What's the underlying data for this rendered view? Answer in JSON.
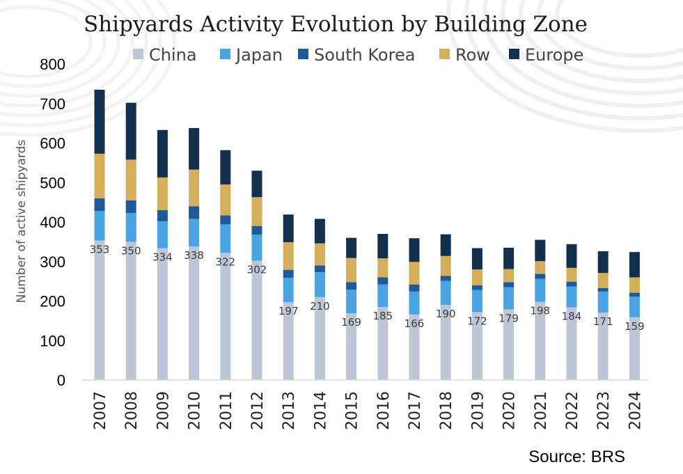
{
  "chart_data": {
    "type": "bar",
    "stacked": true,
    "title": "Shipyards Activity Evolution by Building Zone",
    "ylabel": "Number of active shipyards",
    "xlabel": "",
    "ylim": [
      0,
      800
    ],
    "yticks": [
      0,
      100,
      200,
      300,
      400,
      500,
      600,
      700,
      800
    ],
    "grid": false,
    "legend_position": "top",
    "categories": [
      "2007",
      "2008",
      "2009",
      "2010",
      "2011",
      "2012",
      "2013",
      "2014",
      "2015",
      "2016",
      "2017",
      "2018",
      "2019",
      "2020",
      "2021",
      "2022",
      "2023",
      "2024"
    ],
    "series": [
      {
        "name": "China",
        "color": "#bcc6d4",
        "show_labels": true,
        "values": [
          353,
          350,
          334,
          338,
          322,
          302,
          197,
          210,
          169,
          185,
          166,
          190,
          172,
          179,
          198,
          184,
          171,
          159
        ]
      },
      {
        "name": "Japan",
        "color": "#4aa3e2",
        "values": [
          75,
          73,
          68,
          70,
          72,
          66,
          62,
          63,
          60,
          57,
          58,
          61,
          56,
          56,
          58,
          53,
          53,
          52
        ]
      },
      {
        "name": "South Korea",
        "color": "#1f5a96",
        "values": [
          32,
          32,
          28,
          32,
          23,
          22,
          20,
          17,
          19,
          18,
          18,
          13,
          12,
          13,
          13,
          12,
          9,
          10
        ]
      },
      {
        "name": "Row",
        "color": "#d4ae5a",
        "values": [
          113,
          103,
          83,
          93,
          78,
          73,
          70,
          56,
          61,
          48,
          57,
          50,
          40,
          33,
          32,
          35,
          38,
          39
        ]
      },
      {
        "name": "Europe",
        "color": "#132f4e",
        "values": [
          162,
          144,
          120,
          105,
          87,
          67,
          70,
          62,
          51,
          62,
          60,
          55,
          54,
          54,
          54,
          60,
          55,
          64
        ]
      }
    ]
  },
  "source": "Source: BRS"
}
